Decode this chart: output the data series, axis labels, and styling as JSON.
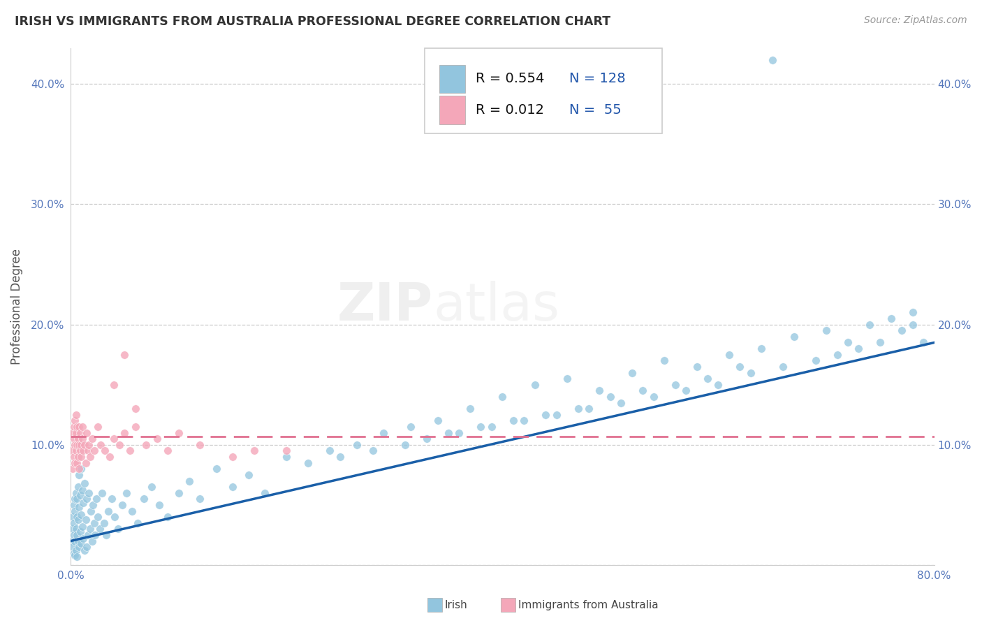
{
  "title": "IRISH VS IMMIGRANTS FROM AUSTRALIA PROFESSIONAL DEGREE CORRELATION CHART",
  "source": "Source: ZipAtlas.com",
  "ylabel": "Professional Degree",
  "xlim": [
    0,
    0.8
  ],
  "ylim": [
    0,
    0.43
  ],
  "irish_color": "#92C5DE",
  "australia_color": "#F4A7B9",
  "irish_line_color": "#1A5FA8",
  "australia_line_color": "#E07090",
  "background_color": "#FFFFFF",
  "grid_color": "#CCCCCC",
  "r_irish": 0.554,
  "n_irish": 128,
  "r_aus": 0.012,
  "n_aus": 55,
  "watermark_text": "ZIPatlas",
  "legend_label1": "Irish",
  "legend_label2": "Immigrants from Australia",
  "irish_x": [
    0.001,
    0.002,
    0.002,
    0.002,
    0.003,
    0.003,
    0.003,
    0.003,
    0.004,
    0.004,
    0.004,
    0.004,
    0.005,
    0.005,
    0.005,
    0.006,
    0.006,
    0.006,
    0.006,
    0.007,
    0.007,
    0.007,
    0.008,
    0.008,
    0.008,
    0.009,
    0.009,
    0.01,
    0.01,
    0.01,
    0.011,
    0.011,
    0.012,
    0.012,
    0.013,
    0.013,
    0.014,
    0.015,
    0.015,
    0.016,
    0.017,
    0.018,
    0.019,
    0.02,
    0.021,
    0.022,
    0.023,
    0.024,
    0.025,
    0.027,
    0.029,
    0.031,
    0.033,
    0.035,
    0.038,
    0.041,
    0.044,
    0.048,
    0.052,
    0.057,
    0.062,
    0.068,
    0.075,
    0.082,
    0.09,
    0.1,
    0.11,
    0.12,
    0.135,
    0.15,
    0.165,
    0.18,
    0.2,
    0.22,
    0.24,
    0.265,
    0.29,
    0.315,
    0.34,
    0.37,
    0.4,
    0.43,
    0.46,
    0.49,
    0.52,
    0.55,
    0.58,
    0.61,
    0.64,
    0.67,
    0.7,
    0.72,
    0.74,
    0.76,
    0.78,
    0.79,
    0.33,
    0.36,
    0.39,
    0.42,
    0.45,
    0.48,
    0.51,
    0.54,
    0.57,
    0.6,
    0.63,
    0.66,
    0.69,
    0.71,
    0.73,
    0.75,
    0.77,
    0.78,
    0.25,
    0.28,
    0.31,
    0.35,
    0.38,
    0.41,
    0.44,
    0.47,
    0.5,
    0.53,
    0.56,
    0.59,
    0.62,
    0.65
  ],
  "irish_y": [
    0.02,
    0.03,
    0.015,
    0.04,
    0.025,
    0.01,
    0.035,
    0.05,
    0.02,
    0.045,
    0.008,
    0.055,
    0.03,
    0.012,
    0.06,
    0.025,
    0.04,
    0.007,
    0.055,
    0.02,
    0.038,
    0.065,
    0.015,
    0.048,
    0.075,
    0.028,
    0.058,
    0.018,
    0.042,
    0.08,
    0.032,
    0.062,
    0.022,
    0.052,
    0.012,
    0.068,
    0.038,
    0.015,
    0.055,
    0.025,
    0.06,
    0.03,
    0.045,
    0.02,
    0.05,
    0.035,
    0.025,
    0.055,
    0.04,
    0.03,
    0.06,
    0.035,
    0.025,
    0.045,
    0.055,
    0.04,
    0.03,
    0.05,
    0.06,
    0.045,
    0.035,
    0.055,
    0.065,
    0.05,
    0.04,
    0.06,
    0.07,
    0.055,
    0.08,
    0.065,
    0.075,
    0.06,
    0.09,
    0.085,
    0.095,
    0.1,
    0.11,
    0.115,
    0.12,
    0.13,
    0.14,
    0.15,
    0.155,
    0.145,
    0.16,
    0.17,
    0.165,
    0.175,
    0.18,
    0.19,
    0.195,
    0.185,
    0.2,
    0.205,
    0.21,
    0.185,
    0.105,
    0.11,
    0.115,
    0.12,
    0.125,
    0.13,
    0.135,
    0.14,
    0.145,
    0.15,
    0.16,
    0.165,
    0.17,
    0.175,
    0.18,
    0.185,
    0.195,
    0.2,
    0.09,
    0.095,
    0.1,
    0.11,
    0.115,
    0.12,
    0.125,
    0.13,
    0.14,
    0.145,
    0.15,
    0.155,
    0.165,
    0.42
  ],
  "aus_x": [
    0.001,
    0.002,
    0.002,
    0.003,
    0.003,
    0.003,
    0.004,
    0.004,
    0.004,
    0.005,
    0.005,
    0.005,
    0.006,
    0.006,
    0.006,
    0.007,
    0.007,
    0.008,
    0.008,
    0.008,
    0.009,
    0.009,
    0.01,
    0.01,
    0.011,
    0.011,
    0.012,
    0.013,
    0.014,
    0.015,
    0.016,
    0.017,
    0.018,
    0.02,
    0.022,
    0.025,
    0.028,
    0.032,
    0.036,
    0.04,
    0.045,
    0.05,
    0.055,
    0.06,
    0.07,
    0.08,
    0.09,
    0.1,
    0.12,
    0.15,
    0.17,
    0.2,
    0.04,
    0.05,
    0.06
  ],
  "aus_y": [
    0.095,
    0.11,
    0.08,
    0.115,
    0.09,
    0.105,
    0.1,
    0.12,
    0.085,
    0.11,
    0.095,
    0.125,
    0.1,
    0.115,
    0.085,
    0.105,
    0.09,
    0.1,
    0.115,
    0.08,
    0.095,
    0.11,
    0.1,
    0.09,
    0.105,
    0.115,
    0.095,
    0.1,
    0.085,
    0.11,
    0.095,
    0.1,
    0.09,
    0.105,
    0.095,
    0.115,
    0.1,
    0.095,
    0.09,
    0.105,
    0.1,
    0.11,
    0.095,
    0.115,
    0.1,
    0.105,
    0.095,
    0.11,
    0.1,
    0.09,
    0.095,
    0.095,
    0.15,
    0.175,
    0.13
  ]
}
